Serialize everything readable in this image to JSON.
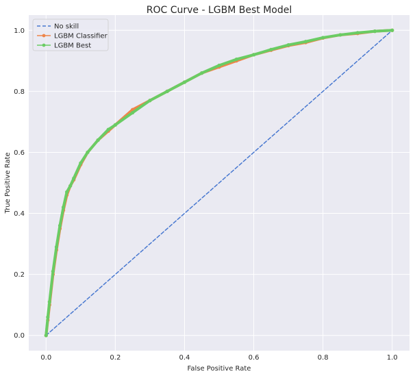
{
  "chart_data": {
    "type": "line",
    "title": "ROC Curve - LGBM Best Model",
    "xlabel": "False Positive Rate",
    "ylabel": "True Positive Rate",
    "xlim": [
      -0.05,
      1.05
    ],
    "ylim": [
      -0.05,
      1.05
    ],
    "xticks": [
      0.0,
      0.2,
      0.4,
      0.6,
      0.8,
      1.0
    ],
    "yticks": [
      0.0,
      0.2,
      0.4,
      0.6,
      0.8,
      1.0
    ],
    "xtick_labels": [
      "0.0",
      "0.2",
      "0.4",
      "0.6",
      "0.8",
      "1.0"
    ],
    "ytick_labels": [
      "0.0",
      "0.2",
      "0.4",
      "0.6",
      "0.8",
      "1.0"
    ],
    "grid": true,
    "background": "#eaeaf2",
    "legend_position": "top-left",
    "series": [
      {
        "name": "No skill",
        "color": "#4878d0",
        "style": "dashed",
        "marker": "none",
        "x": [
          0.0,
          1.0
        ],
        "y": [
          0.0,
          1.0
        ]
      },
      {
        "name": "LGBM Classifier",
        "color": "#ee854a",
        "style": "solid",
        "marker": "dot",
        "x": [
          0.0,
          0.005,
          0.01,
          0.02,
          0.03,
          0.04,
          0.05,
          0.06,
          0.07,
          0.08,
          0.1,
          0.12,
          0.15,
          0.18,
          0.2,
          0.25,
          0.3,
          0.35,
          0.4,
          0.45,
          0.5,
          0.55,
          0.6,
          0.65,
          0.7,
          0.75,
          0.8,
          0.85,
          0.9,
          0.95,
          1.0
        ],
        "y": [
          0.0,
          0.05,
          0.1,
          0.2,
          0.28,
          0.35,
          0.41,
          0.46,
          0.49,
          0.51,
          0.56,
          0.6,
          0.64,
          0.67,
          0.69,
          0.74,
          0.77,
          0.8,
          0.83,
          0.86,
          0.88,
          0.9,
          0.92,
          0.935,
          0.95,
          0.96,
          0.975,
          0.985,
          0.99,
          0.997,
          1.0
        ]
      },
      {
        "name": "LGBM Best",
        "color": "#6acc64",
        "style": "solid",
        "marker": "dot",
        "x": [
          0.0,
          0.005,
          0.01,
          0.02,
          0.03,
          0.04,
          0.05,
          0.06,
          0.07,
          0.08,
          0.1,
          0.12,
          0.15,
          0.18,
          0.2,
          0.25,
          0.3,
          0.35,
          0.4,
          0.45,
          0.5,
          0.55,
          0.6,
          0.65,
          0.7,
          0.75,
          0.8,
          0.85,
          0.9,
          0.95,
          1.0
        ],
        "y": [
          0.0,
          0.06,
          0.11,
          0.21,
          0.29,
          0.36,
          0.42,
          0.47,
          0.49,
          0.515,
          0.565,
          0.6,
          0.64,
          0.675,
          0.69,
          0.73,
          0.77,
          0.8,
          0.83,
          0.86,
          0.885,
          0.905,
          0.92,
          0.937,
          0.952,
          0.963,
          0.976,
          0.985,
          0.992,
          0.997,
          1.0
        ]
      }
    ]
  }
}
